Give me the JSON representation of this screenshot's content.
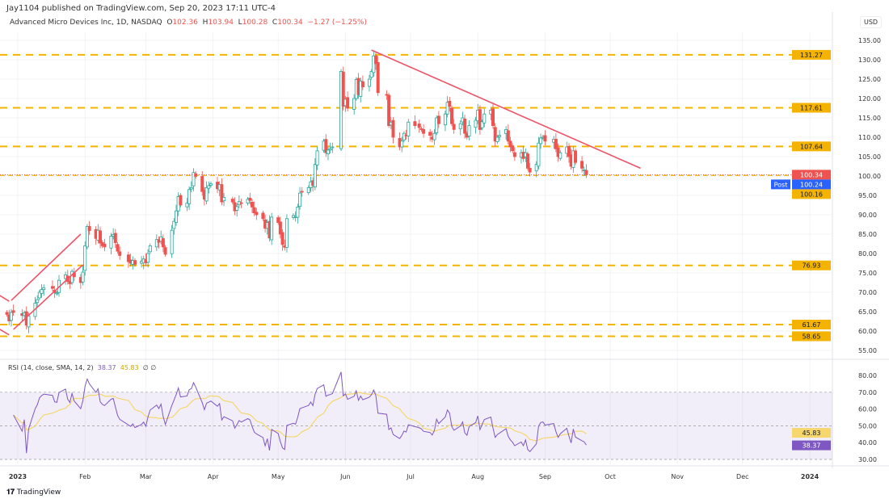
{
  "header": {
    "publisher": "Jay1104 published on TradingView.com, Sep 20, 2023 17:11 UTC-4",
    "symbol": "Advanced Micro Devices Inc, 1D, NASDAQ",
    "o_label": "O",
    "o": "102.36",
    "h_label": "H",
    "h": "103.94",
    "l_label": "L",
    "l": "100.28",
    "c_label": "C",
    "c": "100.34",
    "change": "−1.27 (−1.25%)"
  },
  "currency": "USD",
  "rsi_legend": {
    "label": "RSI (14, close, SMA, 14, 2)",
    "rsi": "38.37",
    "sma": "45.83",
    "extra": "∅ ∅"
  },
  "footer": {
    "brand": "TradingView"
  },
  "colors": {
    "up": "#26a69a",
    "down": "#ef5350",
    "level": "#f5b301",
    "trend": "#ef5367",
    "rsi": "#7e57c2",
    "rsi_sma": "#f5d76e",
    "post": "#2962ff"
  },
  "chart_data": [
    {
      "type": "candlestick",
      "ylim": [
        53,
        137
      ],
      "yticks": [
        "55.00",
        "60.00",
        "65.00",
        "70.00",
        "75.00",
        "80.00",
        "85.00",
        "90.00",
        "95.00",
        "100.00",
        "105.00",
        "110.00",
        "115.00",
        "120.00",
        "125.00",
        "130.00",
        "135.00"
      ],
      "xticks": [
        [
          "2023-01-01",
          "2023"
        ],
        [
          "2023-02-01",
          "Feb"
        ],
        [
          "2023-03-01",
          "Mar"
        ],
        [
          "2023-04-01",
          "Apr"
        ],
        [
          "2023-05-01",
          "May"
        ],
        [
          "2023-06-01",
          "Jun"
        ],
        [
          "2023-07-01",
          "Jul"
        ],
        [
          "2023-08-01",
          "Aug"
        ],
        [
          "2023-09-01",
          "Sep"
        ],
        [
          "2023-10-01",
          "Oct"
        ],
        [
          "2023-11-01",
          "Nov"
        ],
        [
          "2023-12-01",
          "Dec"
        ],
        [
          "2024-01-01",
          "2024"
        ]
      ],
      "closes": [
        [
          "2022-12-27",
          64.3
        ],
        [
          "2022-12-28",
          62.6
        ],
        [
          "2022-12-29",
          64.8
        ],
        [
          "2022-12-30",
          64.8
        ],
        [
          "2023-01-03",
          64.0
        ],
        [
          "2023-01-04",
          64.7
        ],
        [
          "2023-01-05",
          61.5
        ],
        [
          "2023-01-06",
          63.9
        ],
        [
          "2023-01-09",
          67.2
        ],
        [
          "2023-01-10",
          68.1
        ],
        [
          "2023-01-11",
          70.0
        ],
        [
          "2023-01-12",
          70.7
        ],
        [
          "2023-01-13",
          71.2
        ],
        [
          "2023-01-17",
          71.0
        ],
        [
          "2023-01-18",
          69.9
        ],
        [
          "2023-01-19",
          69.8
        ],
        [
          "2023-01-20",
          73.1
        ],
        [
          "2023-01-23",
          74.5
        ],
        [
          "2023-01-24",
          72.8
        ],
        [
          "2023-01-25",
          72.2
        ],
        [
          "2023-01-26",
          75.4
        ],
        [
          "2023-01-27",
          74.0
        ],
        [
          "2023-01-30",
          72.5
        ],
        [
          "2023-01-31",
          75.2
        ],
        [
          "2023-02-01",
          82.0
        ],
        [
          "2023-02-02",
          87.0
        ],
        [
          "2023-02-03",
          85.9
        ],
        [
          "2023-02-06",
          83.9
        ],
        [
          "2023-02-07",
          86.0
        ],
        [
          "2023-02-08",
          82.7
        ],
        [
          "2023-02-09",
          82.0
        ],
        [
          "2023-02-10",
          81.7
        ],
        [
          "2023-02-13",
          84.5
        ],
        [
          "2023-02-14",
          84.9
        ],
        [
          "2023-02-15",
          82.8
        ],
        [
          "2023-02-16",
          80.6
        ],
        [
          "2023-02-17",
          79.5
        ],
        [
          "2023-02-21",
          77.9
        ],
        [
          "2023-02-22",
          77.5
        ],
        [
          "2023-02-23",
          78.2
        ],
        [
          "2023-02-24",
          77.2
        ],
        [
          "2023-02-27",
          78.0
        ],
        [
          "2023-02-28",
          78.6
        ],
        [
          "2023-03-01",
          77.6
        ],
        [
          "2023-03-02",
          80.0
        ],
        [
          "2023-03-03",
          82.0
        ],
        [
          "2023-03-06",
          83.6
        ],
        [
          "2023-03-07",
          82.9
        ],
        [
          "2023-03-08",
          84.3
        ],
        [
          "2023-03-09",
          81.7
        ],
        [
          "2023-03-10",
          79.8
        ],
        [
          "2023-03-13",
          86.0
        ],
        [
          "2023-03-14",
          88.3
        ],
        [
          "2023-03-15",
          91.0
        ],
        [
          "2023-03-16",
          94.7
        ],
        [
          "2023-03-17",
          92.5
        ],
        [
          "2023-03-20",
          93.0
        ],
        [
          "2023-03-21",
          96.5
        ],
        [
          "2023-03-22",
          97.0
        ],
        [
          "2023-03-23",
          100.9
        ],
        [
          "2023-03-24",
          99.9
        ],
        [
          "2023-03-27",
          96.0
        ],
        [
          "2023-03-28",
          94.0
        ],
        [
          "2023-03-29",
          97.0
        ],
        [
          "2023-03-30",
          97.5
        ],
        [
          "2023-03-31",
          98.0
        ],
        [
          "2023-04-03",
          96.7
        ],
        [
          "2023-04-04",
          97.8
        ],
        [
          "2023-04-05",
          93.3
        ],
        [
          "2023-04-06",
          94.5
        ],
        [
          "2023-04-10",
          93.3
        ],
        [
          "2023-04-11",
          91.0
        ],
        [
          "2023-04-12",
          92.1
        ],
        [
          "2023-04-13",
          93.4
        ],
        [
          "2023-04-14",
          93.0
        ],
        [
          "2023-04-17",
          94.0
        ],
        [
          "2023-04-18",
          93.7
        ],
        [
          "2023-04-19",
          92.0
        ],
        [
          "2023-04-20",
          90.5
        ],
        [
          "2023-04-21",
          90.0
        ],
        [
          "2023-04-24",
          89.0
        ],
        [
          "2023-04-25",
          86.5
        ],
        [
          "2023-04-26",
          88.0
        ],
        [
          "2023-04-27",
          84.0
        ],
        [
          "2023-04-28",
          89.4
        ],
        [
          "2023-05-01",
          88.0
        ],
        [
          "2023-05-02",
          85.0
        ],
        [
          "2023-05-03",
          82.3
        ],
        [
          "2023-05-04",
          81.6
        ],
        [
          "2023-05-05",
          89.0
        ],
        [
          "2023-05-08",
          89.8
        ],
        [
          "2023-05-09",
          89.5
        ],
        [
          "2023-05-10",
          92.0
        ],
        [
          "2023-05-11",
          95.6
        ],
        [
          "2023-05-12",
          96.0
        ],
        [
          "2023-05-15",
          97.0
        ],
        [
          "2023-05-16",
          98.5
        ],
        [
          "2023-05-17",
          97.6
        ],
        [
          "2023-05-18",
          103.0
        ],
        [
          "2023-05-19",
          106.5
        ],
        [
          "2023-05-22",
          109.0
        ],
        [
          "2023-05-23",
          106.0
        ],
        [
          "2023-05-24",
          106.7
        ],
        [
          "2023-05-25",
          107.0
        ],
        [
          "2023-05-26",
          107.5
        ],
        [
          "2023-05-30",
          127.0
        ],
        [
          "2023-05-31",
          118.0
        ],
        [
          "2023-06-01",
          119.8
        ],
        [
          "2023-06-02",
          117.5
        ],
        [
          "2023-06-05",
          120.0
        ],
        [
          "2023-06-06",
          124.9
        ],
        [
          "2023-06-07",
          121.0
        ],
        [
          "2023-06-08",
          124.5
        ],
        [
          "2023-06-09",
          123.0
        ],
        [
          "2023-06-12",
          125.0
        ],
        [
          "2023-06-13",
          127.0
        ],
        [
          "2023-06-14",
          131.0
        ],
        [
          "2023-06-15",
          129.0
        ],
        [
          "2023-06-16",
          121.5
        ],
        [
          "2023-06-20",
          121.0
        ],
        [
          "2023-06-21",
          113.0
        ],
        [
          "2023-06-22",
          113.9
        ],
        [
          "2023-06-23",
          110.0
        ],
        [
          "2023-06-26",
          107.5
        ],
        [
          "2023-06-27",
          109.0
        ],
        [
          "2023-06-28",
          111.0
        ],
        [
          "2023-06-29",
          110.5
        ],
        [
          "2023-06-30",
          113.9
        ],
        [
          "2023-07-03",
          113.0
        ],
        [
          "2023-07-05",
          112.5
        ],
        [
          "2023-07-06",
          112.0
        ],
        [
          "2023-07-07",
          111.0
        ],
        [
          "2023-07-10",
          110.5
        ],
        [
          "2023-07-11",
          109.5
        ],
        [
          "2023-07-12",
          111.0
        ],
        [
          "2023-07-13",
          115.0
        ],
        [
          "2023-07-14",
          113.5
        ],
        [
          "2023-07-17",
          116.0
        ],
        [
          "2023-07-18",
          119.0
        ],
        [
          "2023-07-19",
          118.0
        ],
        [
          "2023-07-20",
          113.5
        ],
        [
          "2023-07-21",
          112.0
        ],
        [
          "2023-07-24",
          113.5
        ],
        [
          "2023-07-25",
          115.0
        ],
        [
          "2023-07-26",
          111.0
        ],
        [
          "2023-07-27",
          110.0
        ],
        [
          "2023-07-28",
          113.0
        ],
        [
          "2023-07-31",
          114.4
        ],
        [
          "2023-08-01",
          117.0
        ],
        [
          "2023-08-02",
          112.0
        ],
        [
          "2023-08-03",
          114.0
        ],
        [
          "2023-08-04",
          116.0
        ],
        [
          "2023-08-07",
          117.0
        ],
        [
          "2023-08-08",
          113.0
        ],
        [
          "2023-08-09",
          109.0
        ],
        [
          "2023-08-10",
          110.0
        ],
        [
          "2023-08-11",
          110.5
        ],
        [
          "2023-08-14",
          112.0
        ],
        [
          "2023-08-15",
          109.0
        ],
        [
          "2023-08-16",
          107.5
        ],
        [
          "2023-08-17",
          106.5
        ],
        [
          "2023-08-18",
          105.0
        ],
        [
          "2023-08-21",
          106.0
        ],
        [
          "2023-08-22",
          104.5
        ],
        [
          "2023-08-23",
          106.0
        ],
        [
          "2023-08-24",
          102.0
        ],
        [
          "2023-08-25",
          101.0
        ],
        [
          "2023-08-28",
          103.0
        ],
        [
          "2023-08-29",
          108.5
        ],
        [
          "2023-08-30",
          109.8
        ],
        [
          "2023-08-31",
          110.0
        ],
        [
          "2023-09-01",
          109.0
        ],
        [
          "2023-09-05",
          109.5
        ],
        [
          "2023-09-06",
          107.0
        ],
        [
          "2023-09-07",
          105.0
        ],
        [
          "2023-09-08",
          106.0
        ],
        [
          "2023-09-11",
          107.5
        ],
        [
          "2023-09-12",
          105.0
        ],
        [
          "2023-09-13",
          102.5
        ],
        [
          "2023-09-14",
          106.5
        ],
        [
          "2023-09-15",
          103.5
        ],
        [
          "2023-09-18",
          102.0
        ],
        [
          "2023-09-19",
          101.6
        ],
        [
          "2023-09-20",
          100.34
        ]
      ],
      "levels": [
        {
          "value": 131.27,
          "label": "131.27"
        },
        {
          "value": 117.61,
          "label": "117.61"
        },
        {
          "value": 107.64,
          "label": "107.64"
        },
        {
          "value": 100.16,
          "label": "100.16"
        },
        {
          "value": 76.93,
          "label": "76.93"
        },
        {
          "value": 61.67,
          "label": "61.67"
        },
        {
          "value": 58.65,
          "label": "58.65"
        }
      ],
      "last_price": {
        "value": 100.34,
        "label": "100.34"
      },
      "post_price": {
        "value": 100.24,
        "label": "100.24",
        "tag": "Post"
      },
      "trendlines": [
        [
          [
            "2023-06-13",
            132.5
          ],
          [
            "2023-10-15",
            102.0
          ]
        ],
        [
          [
            "2022-12-20",
            70.4
          ],
          [
            "2022-12-28",
            67.7
          ]
        ],
        [
          [
            "2022-12-20",
            61.7
          ],
          [
            "2022-12-28",
            59.0
          ]
        ],
        [
          [
            "2022-12-29",
            67.9
          ],
          [
            "2023-01-30",
            85.0
          ]
        ],
        [
          [
            "2022-12-30",
            60.4
          ],
          [
            "2023-01-31",
            77.1
          ]
        ]
      ]
    },
    {
      "type": "line",
      "title": "RSI (14, close, SMA, 14, 2)",
      "ylim": [
        27,
        83
      ],
      "yticks": [
        "30.00",
        "40.00",
        "50.00",
        "60.00",
        "70.00",
        "80.00"
      ],
      "bands": [
        30,
        50,
        70
      ],
      "series": [
        {
          "name": "RSI",
          "last": "38.37"
        },
        {
          "name": "SMA",
          "last": "45.83"
        }
      ]
    }
  ]
}
